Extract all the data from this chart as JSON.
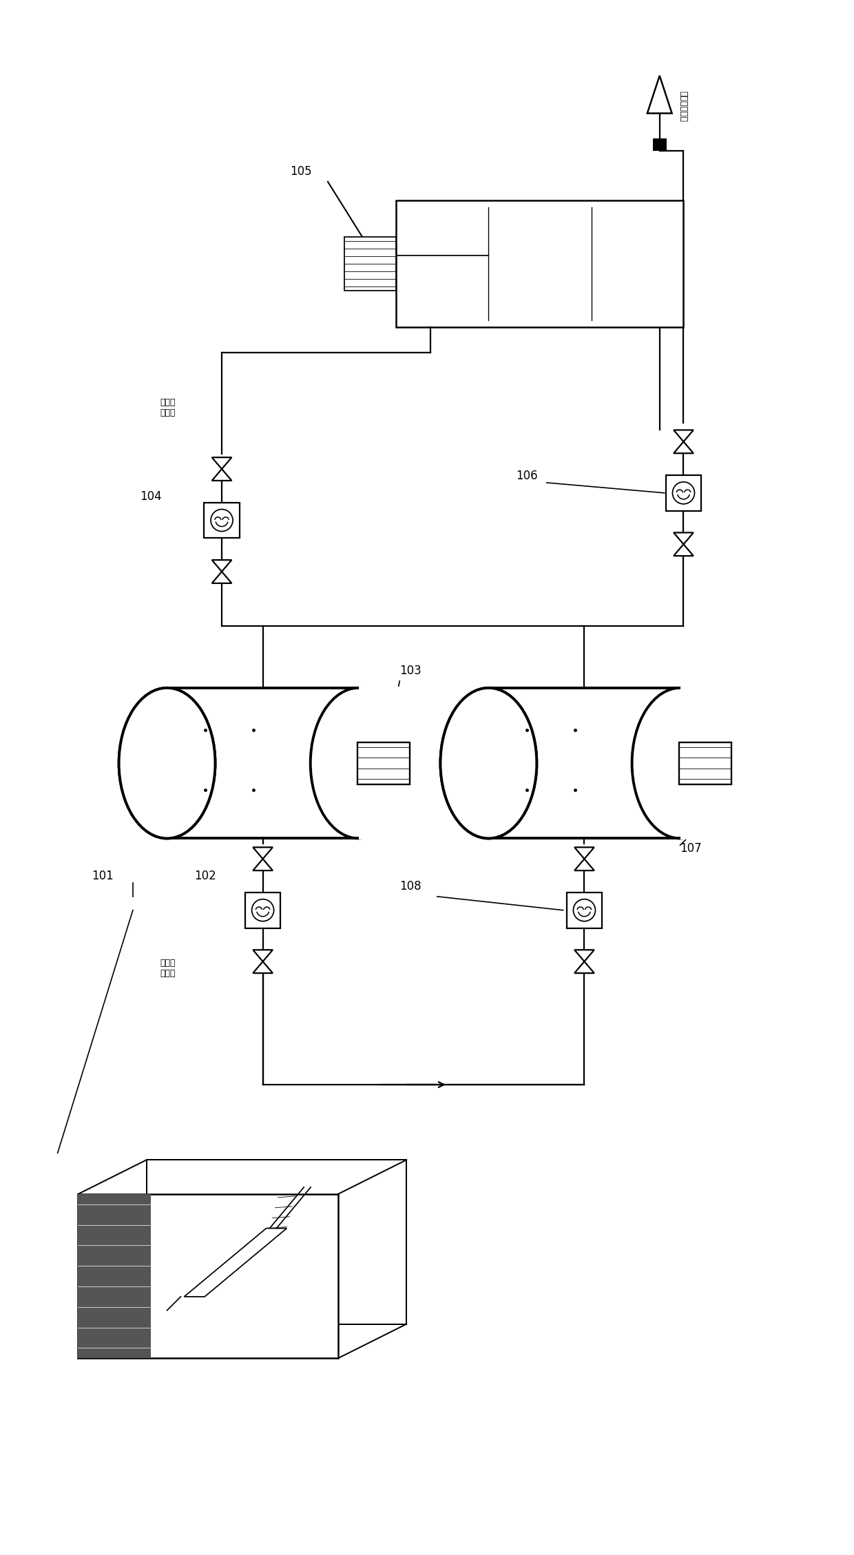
{
  "bg": "#ffffff",
  "lc": "#000000",
  "fig_w": 12.4,
  "fig_h": 22.58,
  "pipe_lw": 1.6,
  "tank_lw": 2.8,
  "label_fs": 12,
  "cn_fs": 9,
  "valve_s": 0.17,
  "pump_r": 0.26,
  "text_exit": "至油泥预热槽",
  "text_cond1": "凝析油\n或柴油",
  "text_cond2": "凝析油\n或柴油"
}
